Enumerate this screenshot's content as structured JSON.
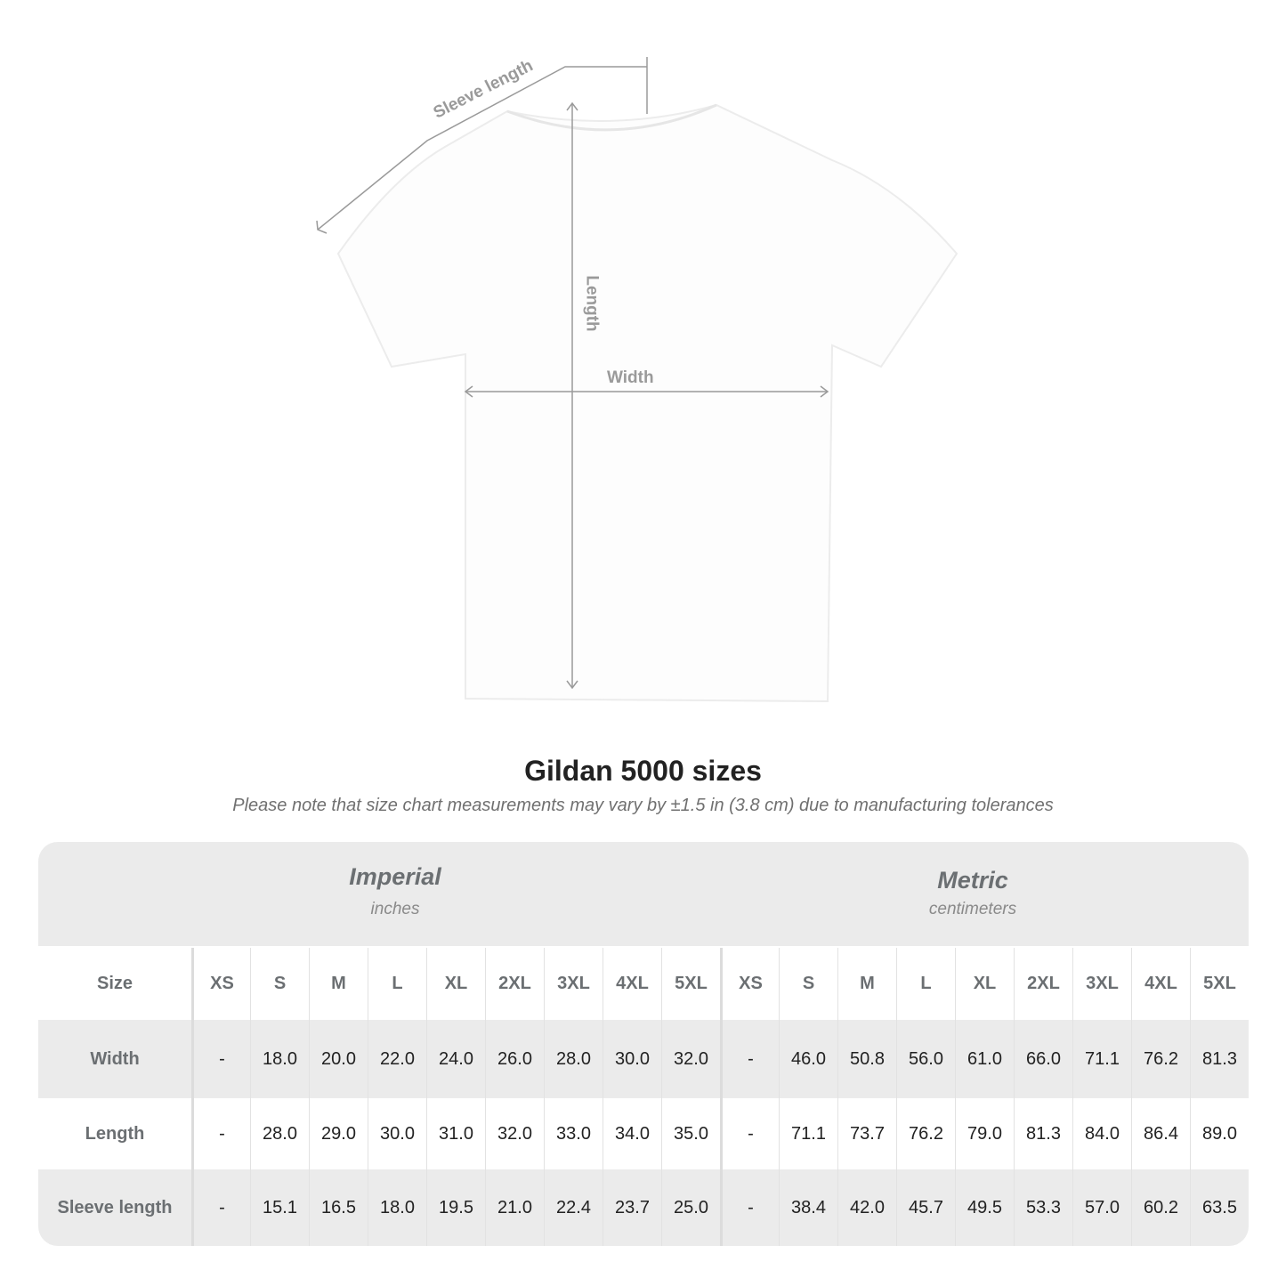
{
  "diagram": {
    "labels": {
      "sleeve": "Sleeve length",
      "length": "Length",
      "width": "Width"
    },
    "shirt_color": "#ffffff",
    "line_color": "#9a9a9a"
  },
  "title": "Gildan 5000 sizes",
  "subtitle": "Please note that size chart measurements may vary by ±1.5 in (3.8 cm) due to manufacturing tolerances",
  "table": {
    "imperial": {
      "name": "Imperial",
      "unit": "inches"
    },
    "metric": {
      "name": "Metric",
      "unit": "centimeters"
    },
    "size_label": "Size",
    "sizes": [
      "XS",
      "S",
      "M",
      "L",
      "XL",
      "2XL",
      "3XL",
      "4XL",
      "5XL"
    ],
    "rows": [
      {
        "label": "Width",
        "imperial": [
          "-",
          "18.0",
          "20.0",
          "22.0",
          "24.0",
          "26.0",
          "28.0",
          "30.0",
          "32.0"
        ],
        "metric": [
          "-",
          "46.0",
          "50.8",
          "56.0",
          "61.0",
          "66.0",
          "71.1",
          "76.2",
          "81.3"
        ]
      },
      {
        "label": "Length",
        "imperial": [
          "-",
          "28.0",
          "29.0",
          "30.0",
          "31.0",
          "32.0",
          "33.0",
          "34.0",
          "35.0"
        ],
        "metric": [
          "-",
          "71.1",
          "73.7",
          "76.2",
          "79.0",
          "81.3",
          "84.0",
          "86.4",
          "89.0"
        ]
      },
      {
        "label": "Sleeve length",
        "imperial": [
          "-",
          "15.1",
          "16.5",
          "18.0",
          "19.5",
          "21.0",
          "22.4",
          "23.7",
          "25.0"
        ],
        "metric": [
          "-",
          "38.4",
          "42.0",
          "45.7",
          "49.5",
          "53.3",
          "57.0",
          "60.2",
          "63.5"
        ]
      }
    ]
  }
}
